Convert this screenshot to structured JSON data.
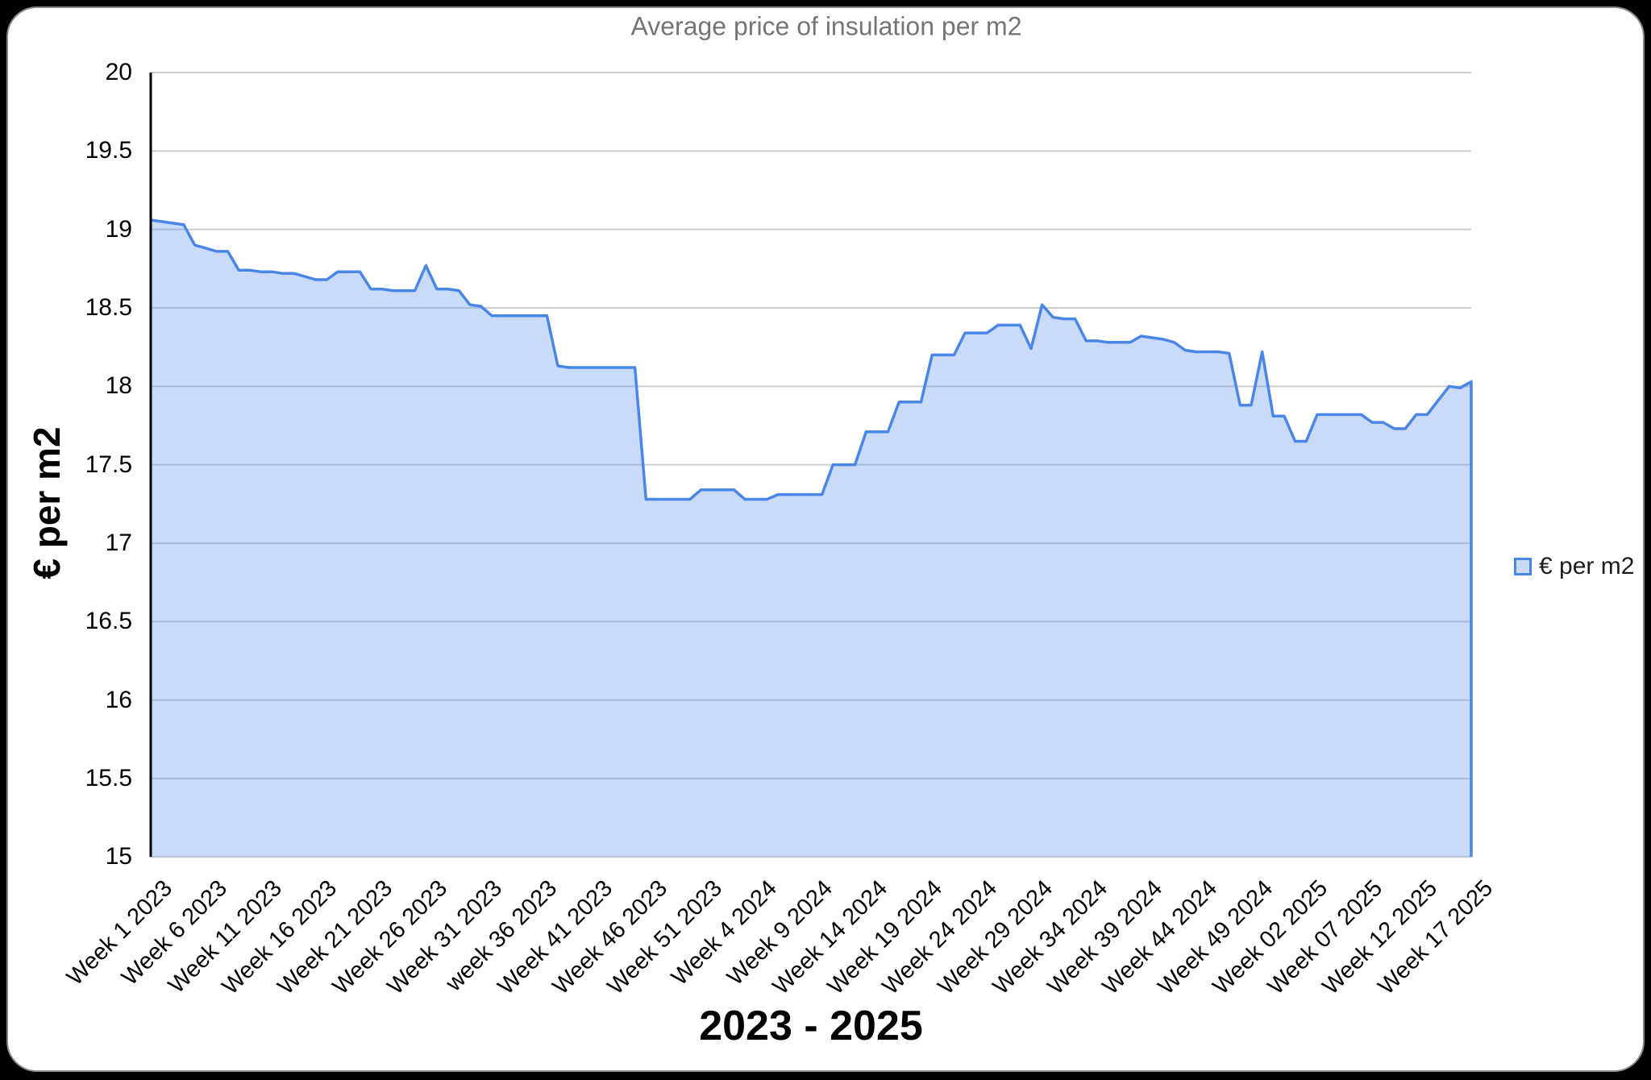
{
  "page": {
    "title": "Average price of insulation per m2",
    "y_axis_title": "€ per m2",
    "x_axis_title": "2023 - 2025",
    "legend": {
      "label": "€ per m2"
    }
  },
  "chart_data": {
    "type": "area",
    "title": "Average price of insulation per m2",
    "xlabel": "2023 - 2025",
    "ylabel": "€ per m2",
    "ylim": [
      15,
      20
    ],
    "y_ticks": [
      20,
      19.5,
      19,
      18.5,
      18,
      17.5,
      17,
      16.5,
      16,
      15.5,
      15
    ],
    "grid": "horizontal",
    "legend_position": "right",
    "x_unit": "week",
    "x_tick_interval": 5,
    "x_tick_labels": [
      "Week 1 2023",
      "Week 6 2023",
      "Week 11 2023",
      "Week 16 2023",
      "Week 21 2023",
      "Week 26 2023",
      "Week 31 2023",
      "week 36 2023",
      "Week 41 2023",
      "Week 46 2023",
      "Week 51 2023",
      "Week 4 2024",
      "Week 9 2024",
      "Week 14 2024",
      "Week 19 2024",
      "Week 24 2024",
      "Week 29 2024",
      "Week 34 2024",
      "Week 39 2024",
      "Week 44 2024",
      "Week 49 2024",
      "Week 02 2025",
      "Week 07 2025",
      "Week 12 2025",
      "Week 17 2025"
    ],
    "series": [
      {
        "name": "€ per m2",
        "values": [
          19.06,
          19.05,
          19.04,
          19.03,
          18.9,
          18.88,
          18.86,
          18.86,
          18.74,
          18.74,
          18.73,
          18.73,
          18.72,
          18.72,
          18.7,
          18.68,
          18.68,
          18.73,
          18.73,
          18.73,
          18.62,
          18.62,
          18.61,
          18.61,
          18.61,
          18.77,
          18.62,
          18.62,
          18.61,
          18.52,
          18.51,
          18.45,
          18.45,
          18.45,
          18.45,
          18.45,
          18.45,
          18.13,
          18.12,
          18.12,
          18.12,
          18.12,
          18.12,
          18.12,
          18.12,
          17.28,
          17.28,
          17.28,
          17.28,
          17.28,
          17.34,
          17.34,
          17.34,
          17.34,
          17.28,
          17.28,
          17.28,
          17.31,
          17.31,
          17.31,
          17.31,
          17.31,
          17.5,
          17.5,
          17.5,
          17.71,
          17.71,
          17.71,
          17.9,
          17.9,
          17.9,
          18.2,
          18.2,
          18.2,
          18.34,
          18.34,
          18.34,
          18.39,
          18.39,
          18.39,
          18.24,
          18.52,
          18.44,
          18.43,
          18.43,
          18.29,
          18.29,
          18.28,
          18.28,
          18.28,
          18.32,
          18.31,
          18.3,
          18.28,
          18.23,
          18.22,
          18.22,
          18.22,
          18.21,
          17.88,
          17.88,
          18.22,
          17.81,
          17.81,
          17.65,
          17.65,
          17.82,
          17.82,
          17.82,
          17.82,
          17.82,
          17.77,
          17.77,
          17.73,
          17.73,
          17.82,
          17.82,
          17.91,
          18.0,
          17.99,
          18.03
        ]
      }
    ],
    "colors": {
      "line": "#4a86e8",
      "fill": "#c9daf8",
      "fill_rgba": "rgba(109,158,235,0.37)",
      "gridline": "#cccccc",
      "axis": "#000000",
      "title": "#757575"
    }
  }
}
